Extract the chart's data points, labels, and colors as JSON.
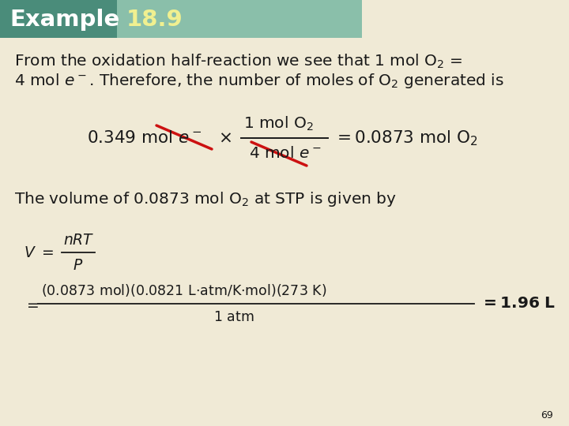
{
  "bg_color": "#f0ead6",
  "header_left_color": "#4a8c7a",
  "header_right_color": "#8abfaa",
  "header_text": "Example",
  "header_num": "18.9",
  "header_text_color": "#ffffff",
  "header_num_color": "#f0f090",
  "page_num": "69",
  "body_text_color": "#1a1a1a",
  "red_cross_color": "#cc1111",
  "font_size_body": 14.5,
  "font_size_header": 21
}
